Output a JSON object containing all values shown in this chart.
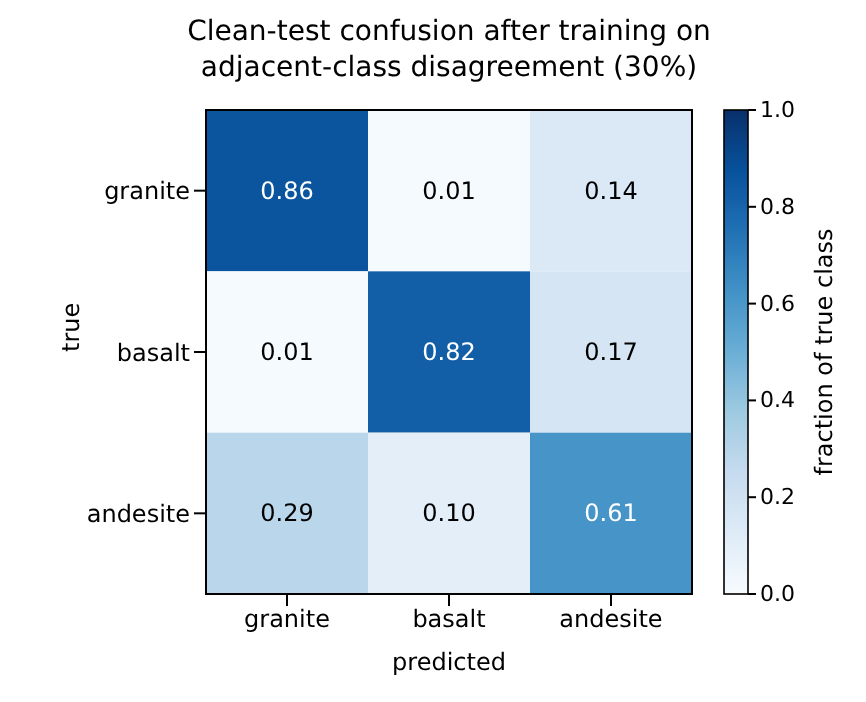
{
  "chart_data": {
    "type": "heatmap",
    "title": "Clean-test confusion after training on\nadjacent-class disagreement (30%)",
    "xlabel": "predicted",
    "ylabel": "true",
    "clabel": "fraction of true class",
    "categories": [
      "granite",
      "basalt",
      "andesite"
    ],
    "y_categories": [
      "granite",
      "basalt",
      "andesite"
    ],
    "cells": [
      [
        0.86,
        0.01,
        0.14
      ],
      [
        0.01,
        0.82,
        0.17
      ],
      [
        0.29,
        0.1,
        0.61
      ]
    ],
    "cell_labels": [
      [
        "0.86",
        "0.01",
        "0.14"
      ],
      [
        "0.01",
        "0.82",
        "0.17"
      ],
      [
        "0.29",
        "0.10",
        "0.61"
      ]
    ],
    "clim": [
      0,
      1
    ],
    "cticks": [
      {
        "value": 0,
        "label": "0.0"
      },
      0.2,
      0.4,
      0.6,
      0.8,
      {
        "value": 1,
        "label": "1.0"
      }
    ],
    "data_labels": true
  }
}
